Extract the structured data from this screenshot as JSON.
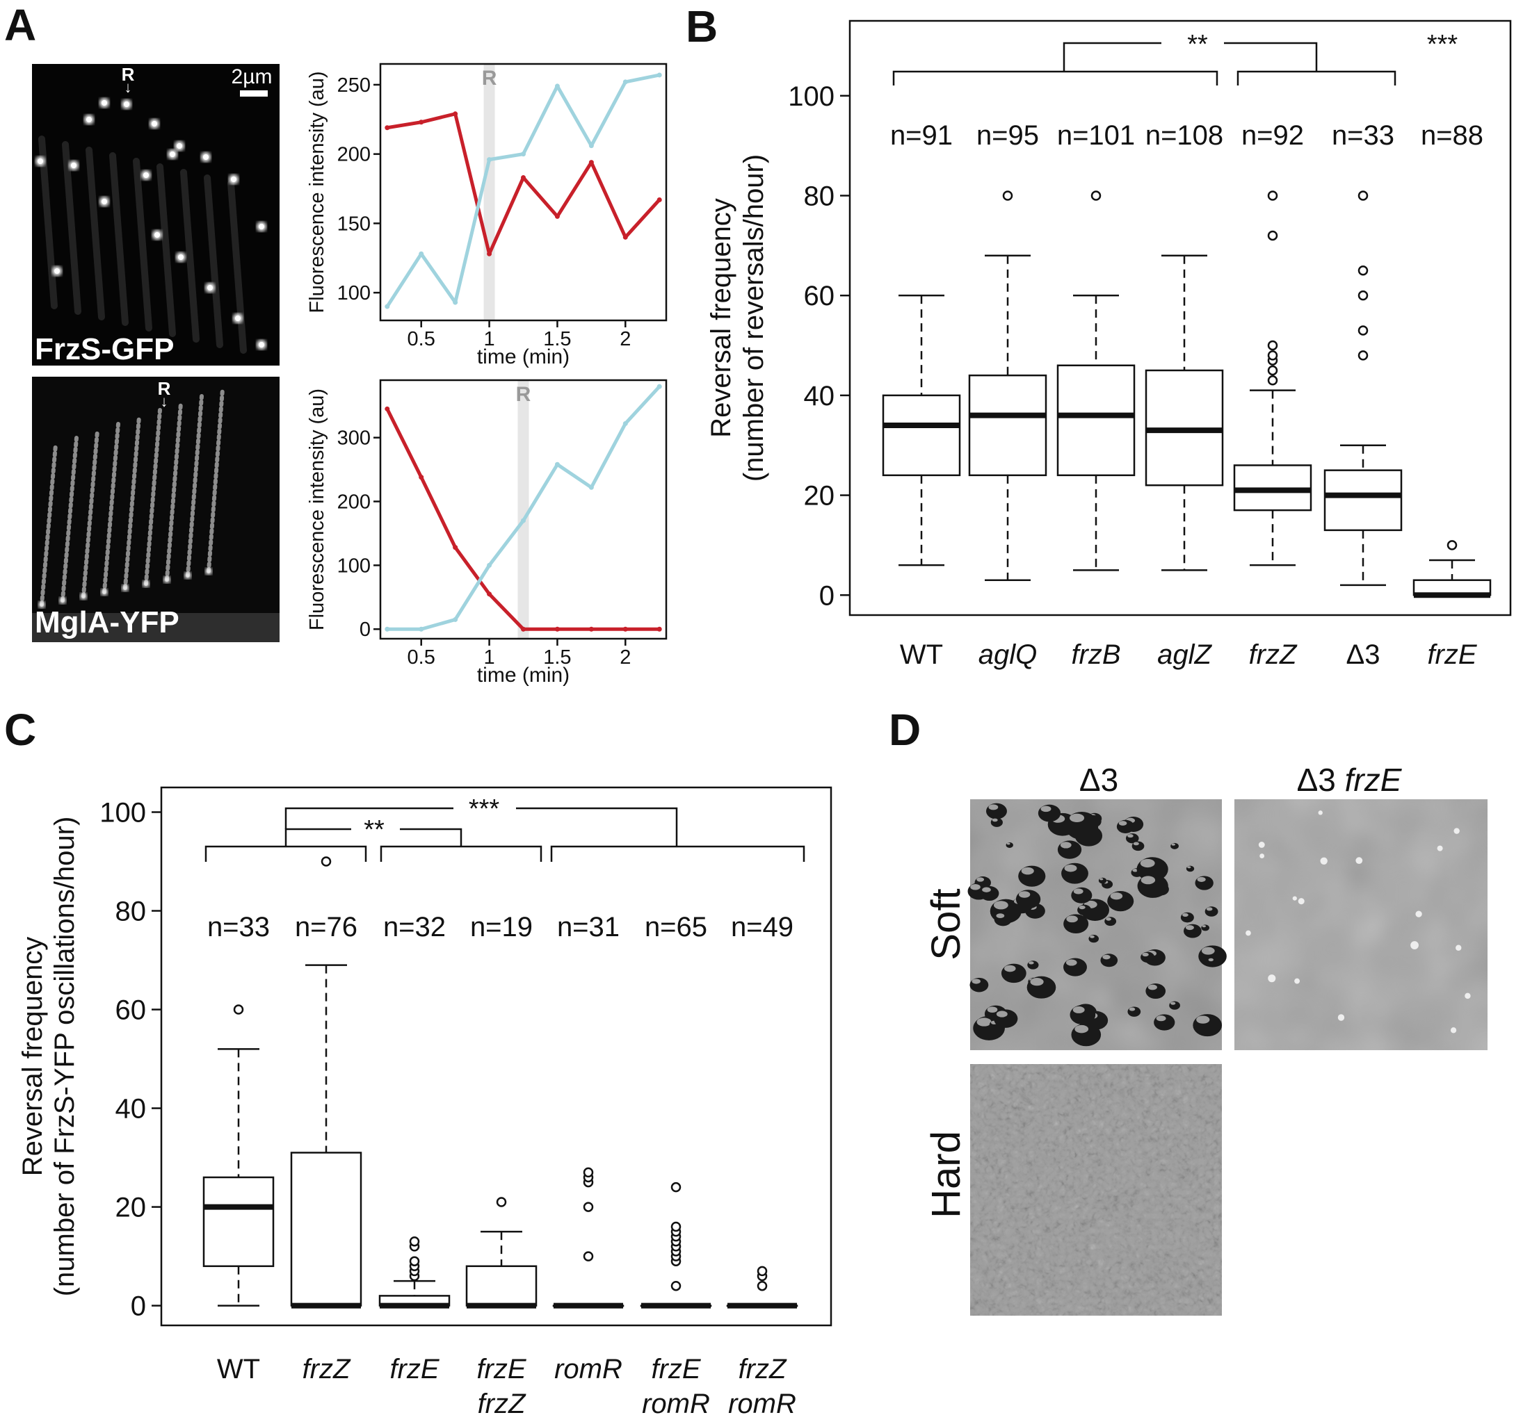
{
  "panels": {
    "A": {
      "letter": "A",
      "image1_label": "FrzS-GFP",
      "image2_label": "MglA-YFP",
      "marker": "R",
      "scale_bar": "2µm",
      "ylabel": "Fluorescence intensity (au)",
      "xlabel": "time (min)"
    },
    "B": {
      "letter": "B"
    },
    "C": {
      "letter": "C"
    },
    "D": {
      "letter": "D",
      "col1": "Δ3",
      "col2_prefix": "Δ3",
      "col2_gene": "frzE",
      "row1": "Soft",
      "row2": "Hard"
    }
  },
  "colors": {
    "red": "#c8202a",
    "blue": "#9fd3de",
    "shade": "#e6e6e6",
    "ink": "#111111"
  },
  "chart_data": [
    {
      "id": "A-top",
      "type": "line",
      "xlabel": "time (min)",
      "ylabel": "Fluorescence intensity (au)",
      "xlim": [
        0.2,
        2.3
      ],
      "ylim": [
        80,
        265
      ],
      "xticks": [
        0.5,
        1,
        1.5,
        2
      ],
      "xtick_labels": [
        "0.5",
        "1",
        "1.5",
        "2"
      ],
      "yticks": [
        100,
        150,
        200,
        250
      ],
      "ytick_labels": [
        "100",
        "150",
        "200",
        "250"
      ],
      "reversal_time": 1,
      "reversal_label": "R",
      "series": [
        {
          "color": "#c8202a",
          "x": [
            0.25,
            0.5,
            0.75,
            1,
            1.25,
            1.5,
            1.75,
            2,
            2.25
          ],
          "y": [
            219,
            223,
            229,
            128,
            183,
            155,
            194,
            140,
            167
          ]
        },
        {
          "color": "#9fd3de",
          "x": [
            0.25,
            0.5,
            0.75,
            1,
            1.25,
            1.5,
            1.75,
            2,
            2.25
          ],
          "y": [
            90,
            128,
            93,
            196,
            200,
            249,
            206,
            252,
            257
          ]
        }
      ]
    },
    {
      "id": "A-bottom",
      "type": "line",
      "xlabel": "time (min)",
      "ylabel": "Fluorescence intensity (au)",
      "xlim": [
        0.2,
        2.3
      ],
      "ylim": [
        -15,
        390
      ],
      "xticks": [
        0.5,
        1,
        1.5,
        2
      ],
      "xtick_labels": [
        "0.5",
        "1",
        "1.5",
        "2"
      ],
      "yticks": [
        0,
        100,
        200,
        300
      ],
      "ytick_labels": [
        "0",
        "100",
        "200",
        "300"
      ],
      "reversal_time": 1.25,
      "reversal_label": "R",
      "series": [
        {
          "color": "#c8202a",
          "x": [
            0.25,
            0.5,
            0.75,
            1,
            1.25,
            1.5,
            1.75,
            2,
            2.25
          ],
          "y": [
            345,
            238,
            128,
            55,
            0,
            0,
            0,
            0,
            0
          ]
        },
        {
          "color": "#9fd3de",
          "x": [
            0.25,
            0.5,
            0.75,
            1,
            1.25,
            1.5,
            1.75,
            2,
            2.25
          ],
          "y": [
            0,
            0,
            15,
            100,
            170,
            258,
            222,
            322,
            380
          ]
        }
      ]
    },
    {
      "id": "B",
      "type": "box",
      "ylabel_line1": "Reversal frequency",
      "ylabel_line2": "(number of reversals/hour)",
      "ylim": [
        -4,
        115
      ],
      "yticks": [
        0,
        20,
        40,
        60,
        80,
        100
      ],
      "ytick_labels": [
        "0",
        "20",
        "40",
        "60",
        "80",
        "100"
      ],
      "categories": [
        {
          "label": "WT",
          "italic": false
        },
        {
          "label": "aglQ",
          "italic": true
        },
        {
          "label": "frzB",
          "italic": true
        },
        {
          "label": "aglZ",
          "italic": true
        },
        {
          "label": "frzZ",
          "italic": true
        },
        {
          "label": "Δ3",
          "italic": false
        },
        {
          "label": "frzE",
          "italic": true
        }
      ],
      "n_labels": [
        "n=91",
        "n=95",
        "n=101",
        "n=108",
        "n=92",
        "n=33",
        "n=88"
      ],
      "boxes": [
        {
          "min": 6,
          "q1": 24,
          "median": 34,
          "q3": 40,
          "max": 60,
          "outliers": []
        },
        {
          "min": 3,
          "q1": 24,
          "median": 36,
          "q3": 44,
          "max": 68,
          "outliers": [
            80
          ]
        },
        {
          "min": 5,
          "q1": 24,
          "median": 36,
          "q3": 46,
          "max": 60,
          "outliers": [
            80
          ]
        },
        {
          "min": 5,
          "q1": 22,
          "median": 33,
          "q3": 45,
          "max": 68,
          "outliers": []
        },
        {
          "min": 6,
          "q1": 17,
          "median": 21,
          "q3": 26,
          "max": 41,
          "outliers": [
            43,
            45,
            47,
            48,
            50,
            72,
            80
          ]
        },
        {
          "min": 2,
          "q1": 13,
          "median": 20,
          "q3": 25,
          "max": 30,
          "outliers": [
            48,
            53,
            60,
            65,
            80
          ]
        },
        {
          "min": 0,
          "q1": 0,
          "median": 0,
          "q3": 3,
          "max": 7,
          "outliers": [
            10
          ]
        }
      ],
      "significance": [
        "**",
        "***"
      ]
    },
    {
      "id": "C",
      "type": "box",
      "ylabel_line1": "Reversal frequency",
      "ylabel_line2": "(number of FrzS-YFP oscillations/hour)",
      "ylim": [
        -4,
        105
      ],
      "yticks": [
        0,
        20,
        40,
        60,
        80,
        100
      ],
      "ytick_labels": [
        "0",
        "20",
        "40",
        "60",
        "80",
        "100"
      ],
      "categories": [
        {
          "lines": [
            "WT"
          ],
          "italic": false
        },
        {
          "lines": [
            "frzZ"
          ],
          "italic": true
        },
        {
          "lines": [
            "frzE"
          ],
          "italic": true
        },
        {
          "lines": [
            "frzE",
            "frzZ"
          ],
          "italic": true
        },
        {
          "lines": [
            "romR"
          ],
          "italic": true
        },
        {
          "lines": [
            "frzE",
            "romR"
          ],
          "italic": true
        },
        {
          "lines": [
            "frzZ",
            "romR"
          ],
          "italic": true
        }
      ],
      "n_labels": [
        "n=33",
        "n=76",
        "n=32",
        "n=19",
        "n=31",
        "n=65",
        "n=49"
      ],
      "boxes": [
        {
          "min": 0,
          "q1": 8,
          "median": 20,
          "q3": 26,
          "max": 52,
          "outliers": [
            60
          ]
        },
        {
          "min": 0,
          "q1": 0,
          "median": 0,
          "q3": 31,
          "max": 69,
          "outliers": [
            90
          ]
        },
        {
          "min": 0,
          "q1": 0,
          "median": 0,
          "q3": 2,
          "max": 5,
          "outliers": [
            6,
            7,
            8,
            9,
            12,
            13
          ]
        },
        {
          "min": 0,
          "q1": 0,
          "median": 0,
          "q3": 8,
          "max": 15,
          "outliers": [
            21
          ]
        },
        {
          "min": 0,
          "q1": 0,
          "median": 0,
          "q3": 0,
          "max": 0,
          "outliers": [
            10,
            20,
            25,
            26,
            27
          ]
        },
        {
          "min": 0,
          "q1": 0,
          "median": 0,
          "q3": 0,
          "max": 0,
          "outliers": [
            4,
            9,
            10,
            11,
            12,
            13,
            14,
            15,
            16,
            24
          ]
        },
        {
          "min": 0,
          "q1": 0,
          "median": 0,
          "q3": 0,
          "max": 0,
          "outliers": [
            4,
            6,
            7
          ]
        }
      ],
      "significance": [
        "**",
        "***"
      ]
    }
  ]
}
